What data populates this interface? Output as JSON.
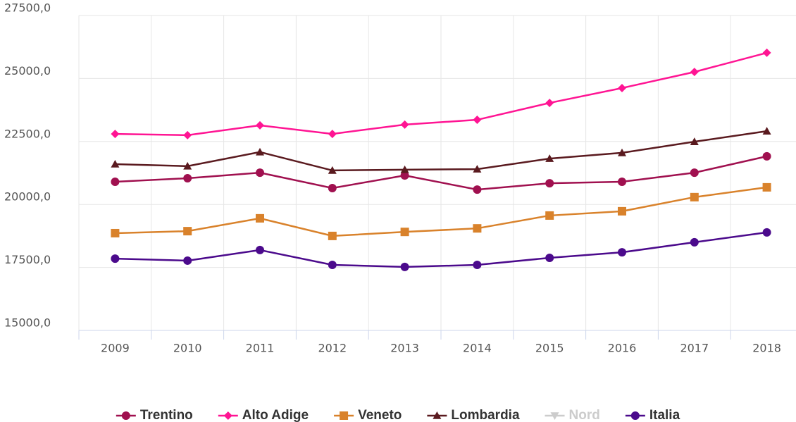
{
  "chart_data": {
    "type": "line",
    "categories": [
      "2009",
      "2010",
      "2011",
      "2012",
      "2013",
      "2014",
      "2015",
      "2016",
      "2017",
      "2018"
    ],
    "series": [
      {
        "name": "Trentino",
        "color": "#a0104f",
        "marker": "circle",
        "values": [
          20900,
          21040,
          21260,
          20650,
          21150,
          20590,
          20840,
          20900,
          21260,
          21910
        ]
      },
      {
        "name": "Alto Adige",
        "color": "#ff1493",
        "marker": "diamond",
        "values": [
          22800,
          22750,
          23140,
          22800,
          23170,
          23360,
          24030,
          24620,
          25260,
          26020
        ]
      },
      {
        "name": "Veneto",
        "color": "#d9822b",
        "marker": "square",
        "values": [
          18860,
          18940,
          19450,
          18750,
          18910,
          19050,
          19560,
          19730,
          20290,
          20680
        ]
      },
      {
        "name": "Lombardia",
        "color": "#5a1a1f",
        "marker": "triangle",
        "values": [
          21600,
          21520,
          22080,
          21350,
          21380,
          21400,
          21820,
          22050,
          22490,
          22910
        ]
      },
      {
        "name": "Nord",
        "color": "#cccccc",
        "marker": "triangle-down",
        "visible": false,
        "values": [
          null,
          null,
          null,
          null,
          null,
          null,
          null,
          null,
          null,
          null
        ]
      },
      {
        "name": "Italia",
        "color": "#4b0a8c",
        "marker": "circle",
        "values": [
          17850,
          17770,
          18190,
          17600,
          17520,
          17600,
          17880,
          18100,
          18500,
          18890
        ]
      }
    ],
    "ylim": [
      15000,
      27500
    ],
    "yticks": [
      {
        "value": 15000,
        "label": "15000,0"
      },
      {
        "value": 17500,
        "label": "17500,0"
      },
      {
        "value": 20000,
        "label": "20000,0"
      },
      {
        "value": 22500,
        "label": "22500,0"
      },
      {
        "value": 25000,
        "label": "25000,0"
      },
      {
        "value": 27500,
        "label": "27500,0"
      }
    ],
    "grid": true,
    "legend": "bottom"
  }
}
